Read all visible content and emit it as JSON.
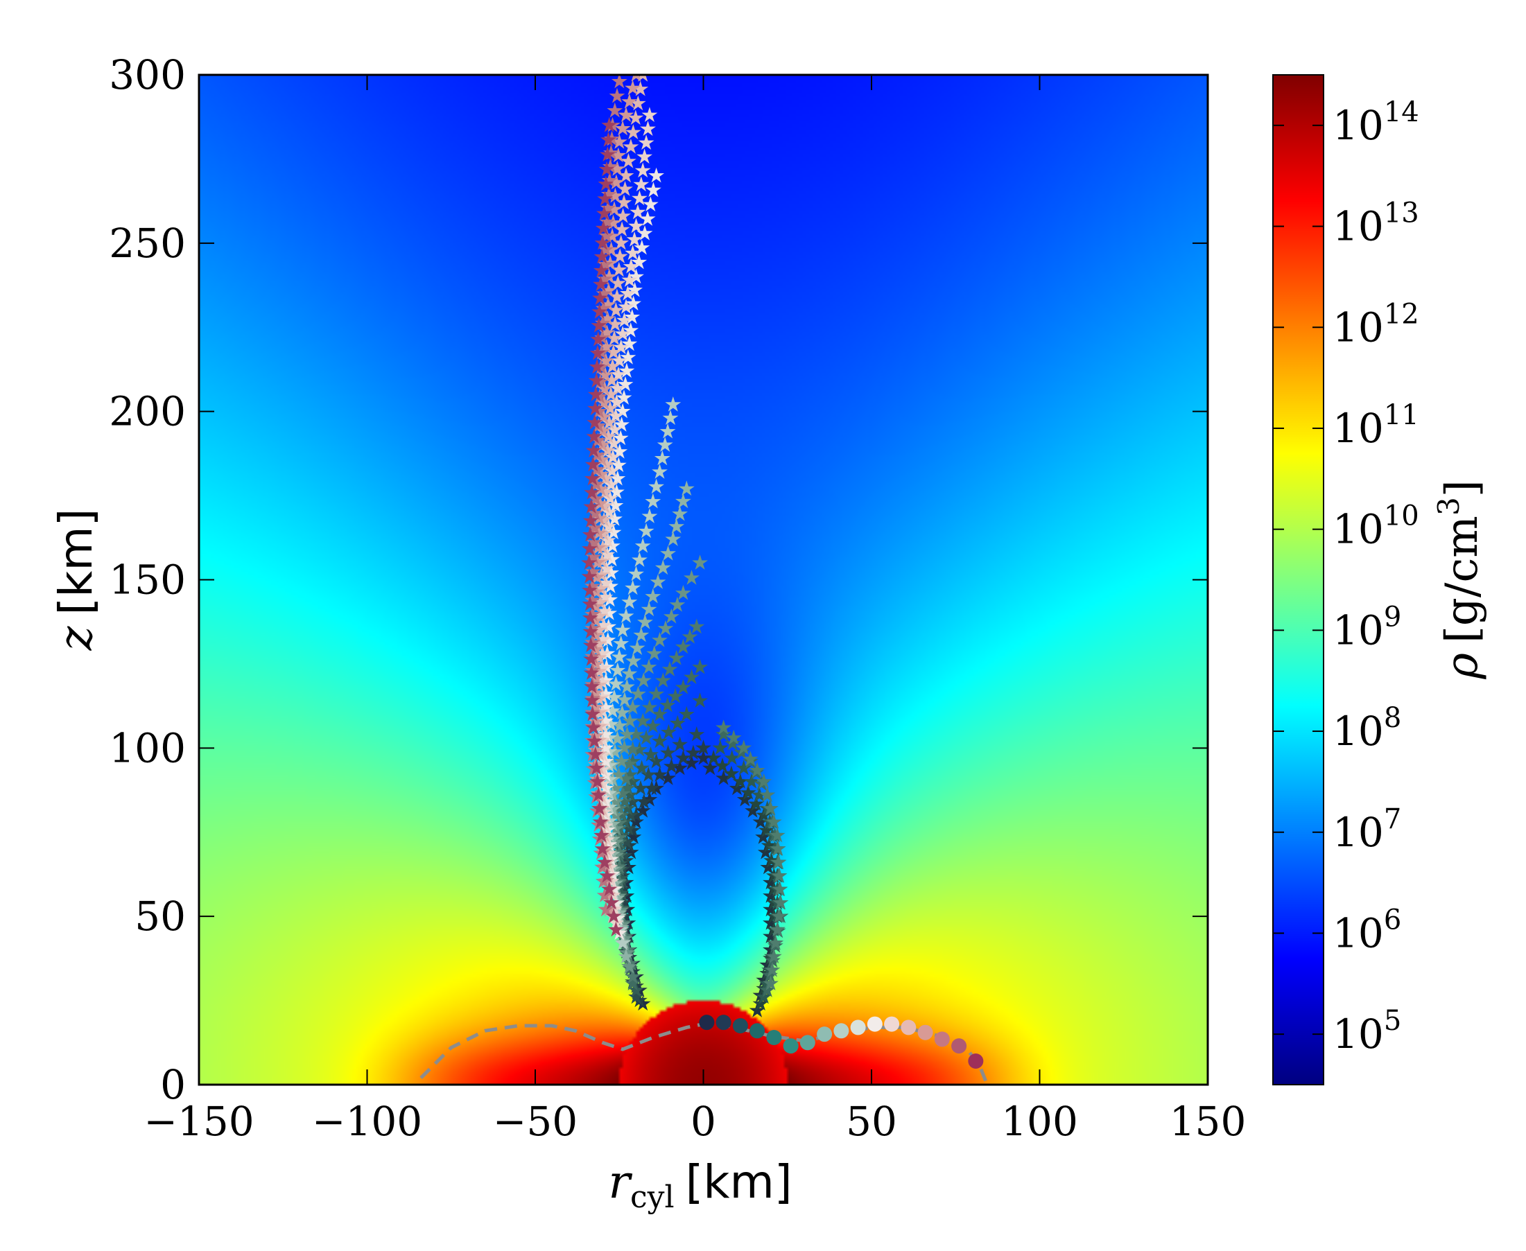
{
  "chart_data": {
    "type": "heatmap",
    "title": "",
    "xlabel": {
      "symbol": "r",
      "subscript": "cyl",
      "unit": "[km]"
    },
    "ylabel": {
      "symbol": "z",
      "unit": "[km]"
    },
    "xlim": [
      -150,
      150
    ],
    "ylim": [
      0,
      300
    ],
    "xticks": [
      -150,
      -100,
      -50,
      0,
      50,
      100,
      150
    ],
    "xtick_labels": [
      "−150",
      "−100",
      "−50",
      "0",
      "50",
      "100",
      "150"
    ],
    "yticks": [
      0,
      50,
      100,
      150,
      200,
      250,
      300
    ],
    "ytick_labels": [
      "0",
      "50",
      "100",
      "150",
      "200",
      "250",
      "300"
    ],
    "grid": false,
    "colormap": "jet",
    "colorbar": {
      "label": {
        "symbol": "ρ",
        "unit": "[g/cm",
        "exponent": "3",
        "close": "]"
      },
      "scale": "log",
      "range_log10": [
        4.5,
        14.5
      ],
      "ticks": [
        {
          "mantissa": "10",
          "exponent": "5",
          "log10": 5
        },
        {
          "mantissa": "10",
          "exponent": "6",
          "log10": 6
        },
        {
          "mantissa": "10",
          "exponent": "7",
          "log10": 7
        },
        {
          "mantissa": "10",
          "exponent": "8",
          "log10": 8
        },
        {
          "mantissa": "10",
          "exponent": "9",
          "log10": 9
        },
        {
          "mantissa": "10",
          "exponent": "10",
          "log10": 10
        },
        {
          "mantissa": "10",
          "exponent": "11",
          "log10": 11
        },
        {
          "mantissa": "10",
          "exponent": "12",
          "log10": 12
        },
        {
          "mantissa": "10",
          "exponent": "13",
          "log10": 13
        },
        {
          "mantissa": "10",
          "exponent": "14",
          "log10": 14
        }
      ]
    },
    "density_field": {
      "core_radius_km": 25,
      "core_log10_rho": 14.3,
      "torus_surface_log10_rho": 11.2,
      "torus_extent_km": 85,
      "polar_funnel_log10_rho": 5.0
    },
    "torus_outline": {
      "style": "dashed",
      "color": "#8c8c8c",
      "points": [
        [
          -84,
          2
        ],
        [
          -75,
          11
        ],
        [
          -65,
          16
        ],
        [
          -55,
          17.5
        ],
        [
          -45,
          17.5
        ],
        [
          -38,
          16
        ],
        [
          -30,
          12.5
        ],
        [
          -24,
          10.5
        ],
        [
          -15,
          14
        ],
        [
          -5,
          17
        ],
        [
          0,
          18
        ],
        [
          5,
          18
        ],
        [
          20,
          14.5
        ],
        [
          30,
          13
        ],
        [
          50,
          17
        ],
        [
          60,
          17
        ],
        [
          72,
          14
        ],
        [
          78,
          11
        ],
        [
          82,
          6
        ],
        [
          84,
          1
        ]
      ]
    },
    "tracer_starts": {
      "marker": "circle",
      "points": [
        [
          1,
          18.5,
          "#1e2a4a"
        ],
        [
          6,
          18.5,
          "#213a55"
        ],
        [
          11,
          17.5,
          "#1f4f5f"
        ],
        [
          16,
          16,
          "#1f6a6a"
        ],
        [
          21,
          14,
          "#267f78"
        ],
        [
          26,
          11.5,
          "#2f8f85"
        ],
        [
          31,
          12.5,
          "#5fa59a"
        ],
        [
          36,
          15,
          "#8fbcb2"
        ],
        [
          41,
          16,
          "#b6d0c7"
        ],
        [
          46,
          17,
          "#d9e2dc"
        ],
        [
          51,
          18,
          "#f2ecea"
        ],
        [
          56,
          18,
          "#efd8d4"
        ],
        [
          61,
          17,
          "#e6bab3"
        ],
        [
          66,
          15.5,
          "#d89a95"
        ],
        [
          71,
          13.5,
          "#c57882"
        ],
        [
          76,
          11.5,
          "#b05a72"
        ],
        [
          81,
          7,
          "#9e2f5a"
        ]
      ]
    },
    "tracer_trajectories": {
      "marker": "star",
      "right_loop": [
        {
          "color": "#1f3340",
          "points": [
            [
              16,
              22
            ],
            [
              20,
              40
            ],
            [
              20,
              60
            ],
            [
              17,
              78
            ],
            [
              10,
              88
            ],
            [
              2,
              94
            ]
          ]
        },
        {
          "color": "#24463e",
          "points": [
            [
              17,
              24
            ],
            [
              21,
              42
            ],
            [
              21,
              62
            ],
            [
              18,
              80
            ],
            [
              11,
              90
            ],
            [
              3,
              97
            ]
          ]
        },
        {
          "color": "#2c5a50",
          "points": [
            [
              18,
              26
            ],
            [
              22,
              46
            ],
            [
              22,
              66
            ],
            [
              19,
              82
            ],
            [
              12,
              94
            ],
            [
              5,
              100
            ]
          ]
        },
        {
          "color": "#3b6a5e",
          "points": [
            [
              19,
              28
            ],
            [
              23,
              50
            ],
            [
              22,
              70
            ],
            [
              19,
              86
            ],
            [
              14,
              96
            ],
            [
              6,
              104
            ]
          ]
        },
        {
          "color": "#4f7d6e",
          "points": [
            [
              20,
              30
            ],
            [
              23,
              54
            ],
            [
              22,
              74
            ],
            [
              18,
              90
            ],
            [
              12,
              100
            ],
            [
              6,
              106
            ]
          ]
        }
      ],
      "left_arches": [
        {
          "color": "#1f2f45",
          "points": [
            [
              -18,
              24
            ],
            [
              -22,
              40
            ],
            [
              -23,
              60
            ],
            [
              -20,
              78
            ],
            [
              -14,
              88
            ],
            [
              -7,
              94
            ],
            [
              0,
              97
            ]
          ]
        },
        {
          "color": "#243e47",
          "points": [
            [
              -19,
              25
            ],
            [
              -23,
              42
            ],
            [
              -24,
              62
            ],
            [
              -20,
              80
            ],
            [
              -13,
              92
            ],
            [
              -6,
              97
            ],
            [
              0,
              100
            ]
          ]
        },
        {
          "color": "#2b4d4e",
          "points": [
            [
              -20,
              26
            ],
            [
              -24,
              44
            ],
            [
              -24,
              64
            ],
            [
              -21,
              84
            ],
            [
              -14,
              96
            ],
            [
              -7,
              101
            ],
            [
              -2,
              104
            ]
          ]
        },
        {
          "color": "#335d55",
          "points": [
            [
              -20,
              28
            ],
            [
              -24,
              48
            ],
            [
              -25,
              70
            ],
            [
              -21,
              90
            ],
            [
              -13,
              102
            ],
            [
              -5,
              110
            ],
            [
              -1,
              114
            ]
          ]
        },
        {
          "color": "#3f6c61",
          "points": [
            [
              -21,
              30
            ],
            [
              -25,
              52
            ],
            [
              -25,
              76
            ],
            [
              -21,
              96
            ],
            [
              -13,
              110
            ],
            [
              -6,
              118
            ],
            [
              -1,
              124
            ]
          ]
        },
        {
          "color": "#4e7a6e",
          "points": [
            [
              -21,
              32
            ],
            [
              -25,
              56
            ],
            [
              -25,
              82
            ],
            [
              -20,
              104
            ],
            [
              -12,
              120
            ],
            [
              -6,
              130
            ],
            [
              -2,
              136
            ]
          ]
        },
        {
          "color": "#6a9486",
          "points": [
            [
              -22,
              35
            ],
            [
              -26,
              60
            ],
            [
              -26,
              88
            ],
            [
              -21,
              112
            ],
            [
              -13,
              132
            ],
            [
              -6,
              146
            ],
            [
              -1,
              155
            ]
          ]
        },
        {
          "color": "#8fb3a6",
          "points": [
            [
              -23,
              38
            ],
            [
              -27,
              64
            ],
            [
              -27,
              95
            ],
            [
              -22,
              122
            ],
            [
              -15,
              145
            ],
            [
              -9,
              162
            ],
            [
              -5,
              177
            ]
          ]
        },
        {
          "color": "#b4cdc4",
          "points": [
            [
              -24,
              42
            ],
            [
              -28,
              70
            ],
            [
              -28,
              103
            ],
            [
              -24,
              135
            ],
            [
              -18,
              160
            ],
            [
              -13,
              182
            ],
            [
              -9,
              202
            ]
          ]
        }
      ],
      "left_plume": [
        {
          "color": "#ede6e3",
          "points": [
            [
              -25,
              45
            ],
            [
              -29,
              80
            ],
            [
              -29,
              120
            ],
            [
              -27,
              160
            ],
            [
              -24,
              200
            ],
            [
              -20,
              240
            ],
            [
              -14,
              270
            ]
          ]
        },
        {
          "color": "#e9d2cc",
          "points": [
            [
              -26,
              48
            ],
            [
              -30,
              85
            ],
            [
              -30,
              128
            ],
            [
              -28,
              170
            ],
            [
              -25,
              215
            ],
            [
              -20,
              255
            ],
            [
              -16,
              288
            ]
          ]
        },
        {
          "color": "#dfb7b1",
          "points": [
            [
              -27,
              50
            ],
            [
              -31,
              90
            ],
            [
              -31,
              135
            ],
            [
              -29,
              180
            ],
            [
              -26,
              230
            ],
            [
              -23,
              270
            ],
            [
              -18,
              300
            ]
          ]
        },
        {
          "color": "#cf9796",
          "points": [
            [
              -28,
              52
            ],
            [
              -32,
              95
            ],
            [
              -32,
              142
            ],
            [
              -30,
              190
            ],
            [
              -28,
              240
            ],
            [
              -25,
              280
            ],
            [
              -20,
              300
            ]
          ]
        },
        {
          "color": "#b87480",
          "points": [
            [
              -29,
              52
            ],
            [
              -33,
              98
            ],
            [
              -33,
              148
            ],
            [
              -31,
              200
            ],
            [
              -29,
              248
            ],
            [
              -27,
              285
            ],
            [
              -25,
              298
            ]
          ]
        },
        {
          "color": "#9e3f61",
          "points": [
            [
              -26,
              46
            ],
            [
              -30,
              70
            ],
            [
              -33,
              110
            ],
            [
              -34,
              155
            ],
            [
              -32,
              205
            ],
            [
              -30,
              250
            ],
            [
              -28,
              285
            ]
          ]
        }
      ]
    }
  }
}
